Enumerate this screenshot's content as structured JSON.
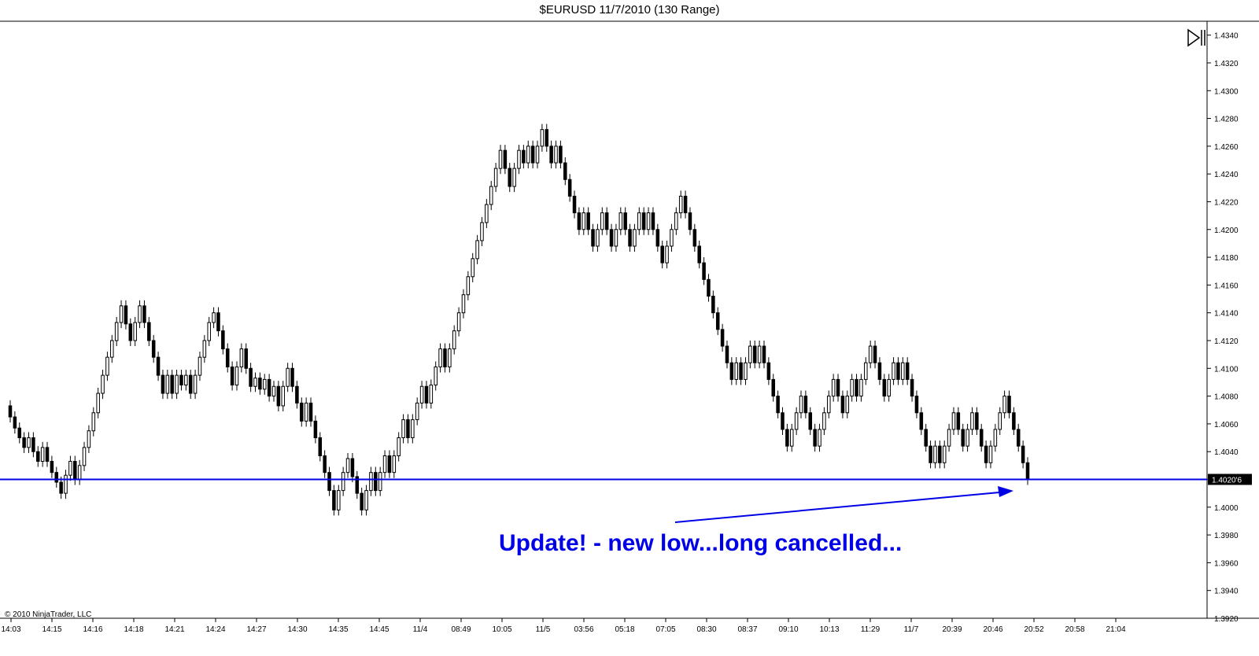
{
  "window": {
    "title": "$EURUSD  11/7/2010 (130 Range)"
  },
  "colors": {
    "up_fill": "#ffffff",
    "down_fill": "#000000",
    "candle_outline": "#000000",
    "hline": "#0000e6",
    "annotation": "#0000e6"
  },
  "toolbar": {
    "scroll_end_icon": "scroll-to-end-icon"
  },
  "footer": {
    "copyright": "© 2010 NinjaTrader, LLC"
  },
  "chart_data": {
    "type": "candlestick",
    "title": "$EURUSD  11/7/2010 (130 Range)",
    "ylim": [
      1.392,
      1.435
    ],
    "y_ticks": [
      "1.4340",
      "1.4320",
      "1.4300",
      "1.4280",
      "1.4260",
      "1.4240",
      "1.4220",
      "1.4200",
      "1.4180",
      "1.4160",
      "1.4140",
      "1.4120",
      "1.4100",
      "1.4080",
      "1.4060",
      "1.4040",
      "1.4020",
      "1.4000",
      "1.3980",
      "1.3960",
      "1.3940",
      "1.3920"
    ],
    "x_ticks": [
      "14:03",
      "14:15",
      "14:16",
      "14:18",
      "14:21",
      "14:24",
      "14:27",
      "14:30",
      "14:35",
      "14:45",
      "11/4",
      "08:49",
      "10:05",
      "11/5",
      "03:56",
      "05:18",
      "07:05",
      "08:30",
      "08:37",
      "09:10",
      "10:13",
      "11:29",
      "11/7",
      "20:39",
      "20:46",
      "20:52",
      "20:58",
      "21:04"
    ],
    "closes": [
      1.4065,
      1.4057,
      1.405,
      1.4043,
      1.405,
      1.404,
      1.4033,
      1.4043,
      1.4033,
      1.4025,
      1.4018,
      1.401,
      1.4023,
      1.4033,
      1.402,
      1.403,
      1.4043,
      1.4055,
      1.4068,
      1.4082,
      1.4095,
      1.4108,
      1.412,
      1.4133,
      1.4145,
      1.4132,
      1.412,
      1.4133,
      1.4145,
      1.4133,
      1.412,
      1.4108,
      1.4095,
      1.4082,
      1.4095,
      1.4082,
      1.4095,
      1.4088,
      1.4095,
      1.4082,
      1.4095,
      1.4108,
      1.412,
      1.4133,
      1.414,
      1.4127,
      1.4114,
      1.4101,
      1.4088,
      1.4101,
      1.4114,
      1.41,
      1.4087,
      1.4093,
      1.4085,
      1.4092,
      1.408,
      1.4087,
      1.4073,
      1.4087,
      1.41,
      1.4087,
      1.4075,
      1.4062,
      1.4075,
      1.4062,
      1.405,
      1.4037,
      1.4025,
      1.4012,
      1.3998,
      1.4012,
      1.4025,
      1.4035,
      1.4022,
      1.401,
      1.3998,
      1.4012,
      1.4025,
      1.4012,
      1.4025,
      1.4037,
      1.4025,
      1.4037,
      1.405,
      1.4063,
      1.405,
      1.4063,
      1.4075,
      1.4087,
      1.4075,
      1.4088,
      1.4101,
      1.4114,
      1.4101,
      1.4114,
      1.4127,
      1.414,
      1.4153,
      1.4166,
      1.4179,
      1.4192,
      1.4205,
      1.4218,
      1.4231,
      1.4244,
      1.4257,
      1.4244,
      1.4231,
      1.4244,
      1.4257,
      1.4248,
      1.426,
      1.4248,
      1.426,
      1.4272,
      1.426,
      1.4248,
      1.426,
      1.4248,
      1.4236,
      1.4224,
      1.4212,
      1.42,
      1.4212,
      1.42,
      1.4188,
      1.42,
      1.4212,
      1.42,
      1.4188,
      1.42,
      1.4212,
      1.42,
      1.4188,
      1.42,
      1.4212,
      1.42,
      1.4212,
      1.42,
      1.4188,
      1.4176,
      1.4188,
      1.42,
      1.4212,
      1.4224,
      1.4212,
      1.42,
      1.4188,
      1.4176,
      1.4164,
      1.4152,
      1.414,
      1.4128,
      1.4116,
      1.4104,
      1.4092,
      1.4104,
      1.4092,
      1.4104,
      1.4116,
      1.4104,
      1.4116,
      1.4104,
      1.4092,
      1.408,
      1.4068,
      1.4056,
      1.4044,
      1.4056,
      1.4068,
      1.408,
      1.4068,
      1.4056,
      1.4044,
      1.4056,
      1.4068,
      1.408,
      1.4092,
      1.408,
      1.4068,
      1.408,
      1.4092,
      1.408,
      1.4092,
      1.4104,
      1.4116,
      1.4104,
      1.4092,
      1.408,
      1.4092,
      1.4104,
      1.4092,
      1.4104,
      1.4092,
      1.408,
      1.4068,
      1.4056,
      1.4044,
      1.4032,
      1.4044,
      1.4032,
      1.4044,
      1.4056,
      1.4068,
      1.4056,
      1.4044,
      1.4056,
      1.4068,
      1.4056,
      1.4044,
      1.4032,
      1.4044,
      1.4056,
      1.4068,
      1.408,
      1.4068,
      1.4056,
      1.4044,
      1.4032,
      1.402
    ],
    "hline": {
      "value": 1.402,
      "label": "1.4020'6"
    },
    "annotation": {
      "text": "Update! - new low...long cancelled..."
    }
  }
}
